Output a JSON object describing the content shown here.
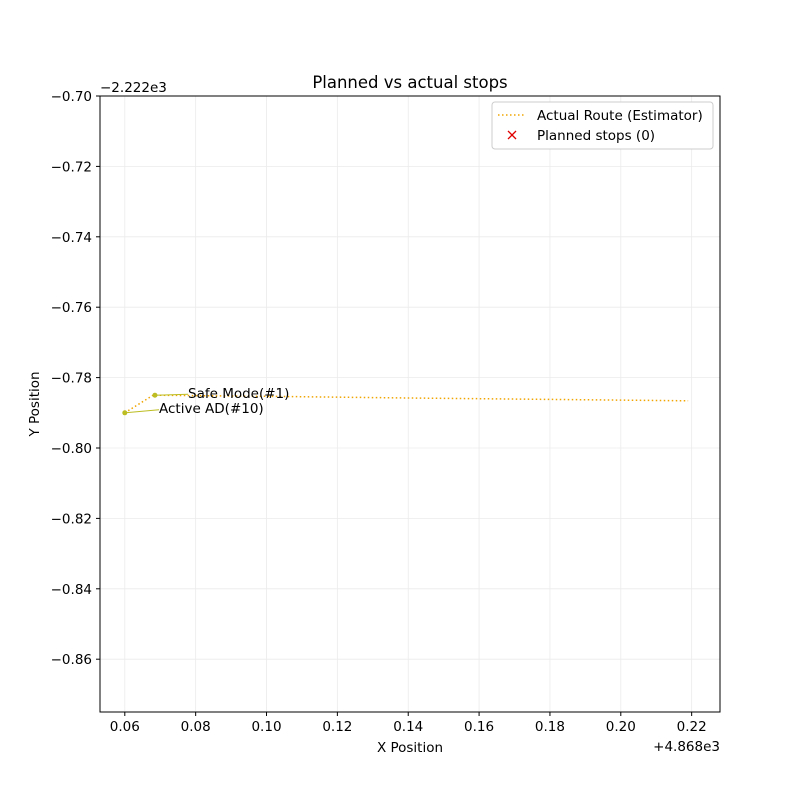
{
  "chart_data": {
    "type": "line",
    "title": "Planned vs actual stops",
    "xlabel": "X Position",
    "ylabel": "Y Position",
    "x_offset_label": "+4.868e3",
    "y_offset_label": "−2.222e3",
    "xlim": [
      0.053,
      0.228
    ],
    "ylim": [
      -0.875,
      -0.7
    ],
    "x_ticks": [
      0.06,
      0.08,
      0.1,
      0.12,
      0.14,
      0.16,
      0.18,
      0.2,
      0.22
    ],
    "x_tick_labels": [
      "0.06",
      "0.08",
      "0.10",
      "0.12",
      "0.14",
      "0.16",
      "0.18",
      "0.20",
      "0.22"
    ],
    "y_ticks": [
      -0.7,
      -0.72,
      -0.74,
      -0.76,
      -0.78,
      -0.8,
      -0.82,
      -0.84,
      -0.86
    ],
    "y_tick_labels": [
      "−0.70",
      "−0.72",
      "−0.74",
      "−0.76",
      "−0.78",
      "−0.80",
      "−0.82",
      "−0.84",
      "−0.86"
    ],
    "grid": true,
    "legend": {
      "position": "top-right",
      "entries": [
        {
          "label": "Actual Route (Estimator)",
          "color": "#f0a500",
          "style": "dotted-line"
        },
        {
          "label": "Planned stops (0)",
          "color": "#e00000",
          "style": "x-marker"
        }
      ]
    },
    "series": [
      {
        "name": "Actual Route (Estimator)",
        "color": "#f0a500",
        "x": [
          0.06,
          0.068,
          0.1,
          0.14,
          0.18,
          0.219
        ],
        "y": [
          -0.79,
          -0.785,
          -0.7853,
          -0.7858,
          -0.7862,
          -0.7866
        ]
      }
    ],
    "planned_stops": [],
    "annotations": [
      {
        "text": "Safe Mode(#1)",
        "x": 0.0685,
        "y": -0.785,
        "color": "#bcbd22"
      },
      {
        "text": "Active AD(#10)",
        "x": 0.06,
        "y": -0.79,
        "color": "#bcbd22"
      }
    ]
  }
}
